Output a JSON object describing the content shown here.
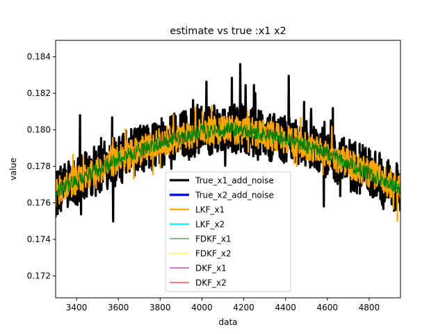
{
  "chart_data": {
    "type": "line",
    "title": "estimate vs true :x1 x2",
    "xlabel": "data",
    "ylabel": "value",
    "xlim": [
      3300,
      4950
    ],
    "ylim": [
      0.1708,
      0.1849
    ],
    "xticks": [
      3400,
      3600,
      3800,
      4000,
      4200,
      4400,
      4600,
      4800
    ],
    "yticks": [
      0.172,
      0.174,
      0.176,
      0.178,
      0.18,
      0.182,
      0.184
    ],
    "ytick_labels": [
      "0.172",
      "0.174",
      "0.176",
      "0.178",
      "0.180",
      "0.182",
      "0.184"
    ],
    "grid": false,
    "legend_position": "lower-center",
    "trend": {
      "x": [
        3300,
        3400,
        3600,
        3800,
        4000,
        4100,
        4200,
        4400,
        4600,
        4800,
        4950
      ],
      "y": [
        0.1766,
        0.1772,
        0.1784,
        0.1793,
        0.1799,
        0.18,
        0.18,
        0.1795,
        0.1787,
        0.1776,
        0.1768
      ]
    },
    "series": [
      {
        "name": "True_x1_add_noise",
        "color": "#000000",
        "width": 3.2,
        "noise": 0.0014,
        "spikes": 0.0026,
        "seed": 11
      },
      {
        "name": "True_x2_add_noise",
        "color": "#0000ff",
        "width": 3.2,
        "noise": 0,
        "spikes": 0,
        "seed": 0
      },
      {
        "name": "LKF_x1",
        "color": "#ffa500",
        "width": 2.2,
        "noise": 0.0008,
        "spikes": 0.0012,
        "seed": 23
      },
      {
        "name": "LKF_x2",
        "color": "#00ffff",
        "width": 2.2,
        "noise": 0,
        "spikes": 0,
        "seed": 0
      },
      {
        "name": "FDKF_x1",
        "color": "#008000",
        "width": 1.1,
        "noise": 0.0004,
        "spikes": 0,
        "seed": 37
      },
      {
        "name": "FDKF_x2",
        "color": "#ffff00",
        "width": 1.1,
        "noise": 0,
        "spikes": 0,
        "seed": 0
      },
      {
        "name": "DKF_x1",
        "color": "#800080",
        "width": 1.1,
        "noise": 0,
        "spikes": 0,
        "seed": 0
      },
      {
        "name": "DKF_x2",
        "color": "#ff0000",
        "width": 1.1,
        "noise": 0,
        "spikes": 0,
        "seed": 0
      }
    ]
  }
}
